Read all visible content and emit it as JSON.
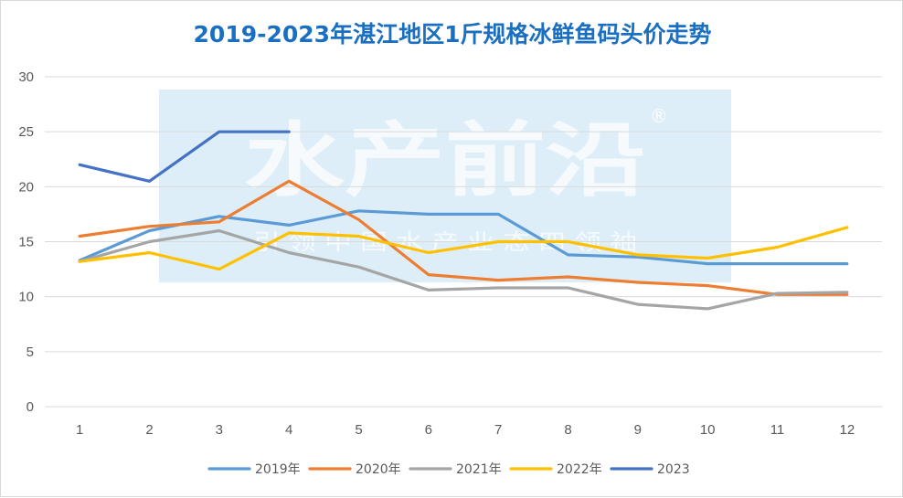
{
  "watermark": {
    "main": "水产前沿",
    "registered": "®",
    "sub": "引 领 中 国 水 产 业 态 四 领 袖"
  },
  "chart_data": {
    "type": "line",
    "title": "2019-2023年湛江地区1斤规格冰鲜鱼码头价走势",
    "x": [
      1,
      2,
      3,
      4,
      5,
      6,
      7,
      8,
      9,
      10,
      11,
      12
    ],
    "ylim": [
      0,
      30
    ],
    "yticks": [
      0,
      5,
      10,
      15,
      20,
      25,
      30
    ],
    "grid": true,
    "legend_position": "bottom",
    "series": [
      {
        "name": "2019年",
        "color": "#5b9bd5",
        "values": [
          13.3,
          16.0,
          17.3,
          16.5,
          17.8,
          17.5,
          17.5,
          13.8,
          13.6,
          13.0,
          13.0,
          13.0
        ]
      },
      {
        "name": "2020年",
        "color": "#ed7d31",
        "values": [
          15.5,
          16.4,
          16.8,
          20.5,
          17.0,
          12.0,
          11.5,
          11.8,
          11.3,
          11.0,
          10.2,
          10.2
        ]
      },
      {
        "name": "2021年",
        "color": "#a5a5a5",
        "values": [
          13.2,
          15.0,
          16.0,
          14.0,
          12.7,
          10.6,
          10.8,
          10.8,
          9.3,
          8.9,
          10.3,
          10.4
        ]
      },
      {
        "name": "2022年",
        "color": "#ffc000",
        "values": [
          13.2,
          14.0,
          12.5,
          15.8,
          15.5,
          14.0,
          15.0,
          15.0,
          13.8,
          13.5,
          14.5,
          16.3
        ]
      },
      {
        "name": "2023",
        "color": "#4472c4",
        "values": [
          22.0,
          20.5,
          25.0,
          25.0,
          null,
          null,
          null,
          null,
          null,
          null,
          null,
          null
        ]
      }
    ]
  }
}
